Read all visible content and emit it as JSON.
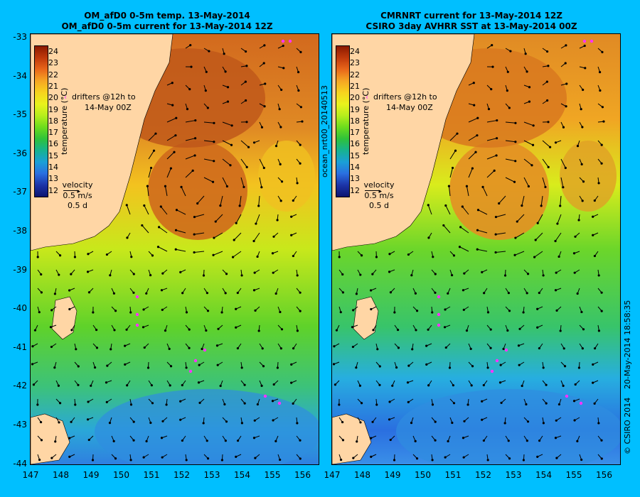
{
  "left": {
    "title_line1": "OM_afD0 0-5m temp. 13-May-2014",
    "title_line2": "OM_afD0 0-5m current for 13-May-2014 12Z"
  },
  "right": {
    "title_line1": "CMRNRT current for 13-May-2014 12Z",
    "title_line2": "CSIRO 3day AVHRR SST at 13-May-2014 00Z",
    "side_label": "ocean_nrt00_20140513"
  },
  "lat_labels": [
    "-33",
    "-34",
    "-35",
    "-36",
    "-37",
    "-38",
    "-39",
    "-40",
    "-41",
    "-42",
    "-43",
    "-44"
  ],
  "lon_labels": [
    "147",
    "148",
    "149",
    "150",
    "151",
    "152",
    "153",
    "154",
    "155",
    "156"
  ],
  "colorbar": {
    "ticks": [
      "24",
      "23",
      "22",
      "21",
      "20",
      "19",
      "18",
      "17",
      "16",
      "15",
      "14",
      "13",
      "12"
    ],
    "label": "temperature (°C)"
  },
  "drifters_note_line1": "drifters @12h to",
  "drifters_note_line2": "14-May 00Z",
  "velocity_line1": "velocity",
  "velocity_line2": "0.5 m/s",
  "velocity_line3": "0.5 d",
  "footer_right": "20-May-2014 18:58:35",
  "footer_credit": "© CSIRO 2014",
  "colors": {
    "background": "#00bfff",
    "land": "#ffd6a5",
    "drifter": "#ff33ff"
  }
}
